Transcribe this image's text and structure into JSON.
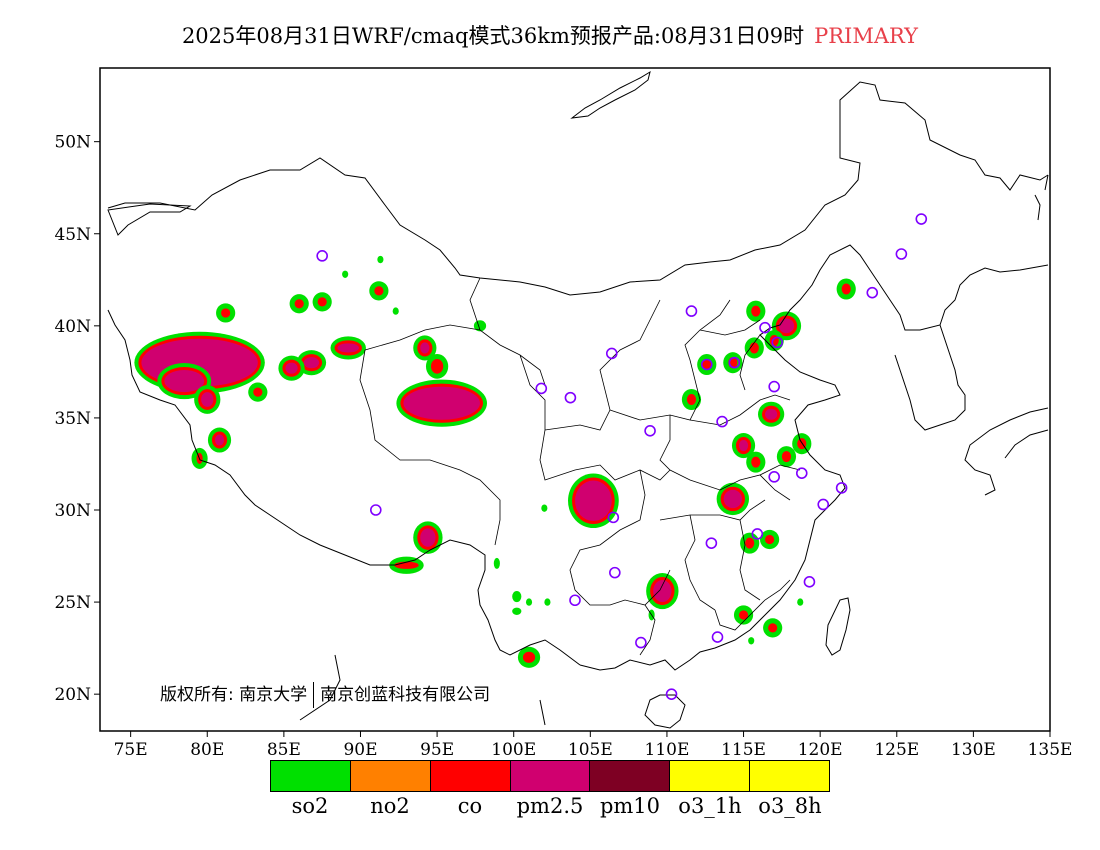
{
  "title": {
    "main": "2025年08月31日WRF/cmaq模式36km预报产品:08月31日09时",
    "tag": "PRIMARY"
  },
  "copyright": {
    "holder1": "版权所有: 南京大学",
    "holder2": "南京创蓝科技有限公司"
  },
  "axes": {
    "lon_labels": [
      "75E",
      "80E",
      "85E",
      "90E",
      "95E",
      "100E",
      "105E",
      "110E",
      "115E",
      "120E",
      "125E",
      "130E",
      "135E"
    ],
    "lon_values": [
      75,
      80,
      85,
      90,
      95,
      100,
      105,
      110,
      115,
      120,
      125,
      130,
      135
    ],
    "lat_labels": [
      "20N",
      "25N",
      "30N",
      "35N",
      "40N",
      "45N",
      "50N"
    ],
    "lat_values": [
      20,
      25,
      30,
      35,
      40,
      45,
      50
    ],
    "lon_range": [
      73,
      135
    ],
    "lat_range": [
      18,
      54
    ]
  },
  "legend": [
    {
      "label": "so2",
      "color": "#00e000"
    },
    {
      "label": "no2",
      "color": "#ff8000"
    },
    {
      "label": "co",
      "color": "#ff0000"
    },
    {
      "label": "pm2.5",
      "color": "#d0006f"
    },
    {
      "label": "pm10",
      "color": "#7e0023"
    },
    {
      "label": "o3_1h",
      "color": "#ffff00"
    },
    {
      "label": "o3_8h",
      "color": "#ffff00"
    }
  ],
  "colors": {
    "ring": "#7f00ff"
  },
  "primary_regions": [
    {
      "kind": "pm2.5",
      "lon": 79.5,
      "lat": 38.0,
      "rx": 3.8,
      "ry": 1.3
    },
    {
      "kind": "pm2.5",
      "lon": 78.5,
      "lat": 37.0,
      "rx": 1.3,
      "ry": 0.6
    },
    {
      "kind": "pm2.5",
      "lon": 95.3,
      "lat": 35.8,
      "rx": 2.5,
      "ry": 0.9
    },
    {
      "kind": "pm2.5",
      "lon": 105.2,
      "lat": 30.5,
      "rx": 1.2,
      "ry": 1.1
    },
    {
      "kind": "pm2.5",
      "lon": 114.3,
      "lat": 30.6,
      "rx": 0.6,
      "ry": 0.5
    },
    {
      "kind": "pm2.5",
      "lon": 109.7,
      "lat": 25.6,
      "rx": 0.6,
      "ry": 0.6
    },
    {
      "kind": "pm2.5",
      "lon": 94.4,
      "lat": 28.5,
      "rx": 0.5,
      "ry": 0.5
    },
    {
      "kind": "pm2.5",
      "lon": 89.2,
      "lat": 38.8,
      "rx": 0.7,
      "ry": 0.25
    },
    {
      "kind": "pm2.5",
      "lon": 86.8,
      "lat": 38.0,
      "rx": 0.5,
      "ry": 0.3
    },
    {
      "kind": "pm2.5",
      "lon": 85.5,
      "lat": 37.7,
      "rx": 0.4,
      "ry": 0.3
    },
    {
      "kind": "pm2.5",
      "lon": 80.0,
      "lat": 36.0,
      "rx": 0.4,
      "ry": 0.4
    },
    {
      "kind": "pm2.5",
      "lon": 80.8,
      "lat": 33.8,
      "rx": 0.3,
      "ry": 0.3
    },
    {
      "kind": "pm2.5",
      "lon": 94.2,
      "lat": 38.8,
      "rx": 0.3,
      "ry": 0.3
    },
    {
      "kind": "pm2.5",
      "lon": 115.0,
      "lat": 33.5,
      "rx": 0.3,
      "ry": 0.3
    },
    {
      "kind": "pm2.5",
      "lon": 116.8,
      "lat": 35.2,
      "rx": 0.4,
      "ry": 0.3
    },
    {
      "kind": "pm2.5",
      "lon": 117.8,
      "lat": 40.0,
      "rx": 0.5,
      "ry": 0.4
    },
    {
      "kind": "co",
      "lon": 86.0,
      "lat": 41.2,
      "rx": 0.3,
      "ry": 0.25
    },
    {
      "kind": "co",
      "lon": 87.5,
      "lat": 41.3,
      "rx": 0.3,
      "ry": 0.25
    },
    {
      "kind": "co",
      "lon": 81.2,
      "lat": 40.7,
      "rx": 0.3,
      "ry": 0.25
    },
    {
      "kind": "co",
      "lon": 83.3,
      "lat": 36.4,
      "rx": 0.3,
      "ry": 0.25
    },
    {
      "kind": "co",
      "lon": 91.2,
      "lat": 41.9,
      "rx": 0.3,
      "ry": 0.25
    },
    {
      "kind": "co",
      "lon": 95.0,
      "lat": 37.8,
      "rx": 0.4,
      "ry": 0.4
    },
    {
      "kind": "co",
      "lon": 101.0,
      "lat": 22.0,
      "rx": 0.4,
      "ry": 0.3
    },
    {
      "kind": "co",
      "lon": 93.0,
      "lat": 27.0,
      "rx": 0.8,
      "ry": 0.2
    },
    {
      "kind": "co",
      "lon": 111.6,
      "lat": 36.0,
      "rx": 0.3,
      "ry": 0.3
    },
    {
      "kind": "co",
      "lon": 112.6,
      "lat": 37.9,
      "rx": 0.3,
      "ry": 0.3
    },
    {
      "kind": "co",
      "lon": 114.3,
      "lat": 38.0,
      "rx": 0.3,
      "ry": 0.3
    },
    {
      "kind": "co",
      "lon": 115.7,
      "lat": 38.8,
      "rx": 0.3,
      "ry": 0.3
    },
    {
      "kind": "co",
      "lon": 115.8,
      "lat": 40.8,
      "rx": 0.3,
      "ry": 0.3
    },
    {
      "kind": "co",
      "lon": 117.0,
      "lat": 39.2,
      "rx": 0.3,
      "ry": 0.3
    },
    {
      "kind": "co",
      "lon": 117.8,
      "lat": 32.9,
      "rx": 0.3,
      "ry": 0.3
    },
    {
      "kind": "co",
      "lon": 118.8,
      "lat": 33.6,
      "rx": 0.3,
      "ry": 0.3
    },
    {
      "kind": "co",
      "lon": 115.8,
      "lat": 32.6,
      "rx": 0.3,
      "ry": 0.3
    },
    {
      "kind": "co",
      "lon": 115.4,
      "lat": 28.2,
      "rx": 0.3,
      "ry": 0.3
    },
    {
      "kind": "co",
      "lon": 116.7,
      "lat": 28.4,
      "rx": 0.3,
      "ry": 0.25
    },
    {
      "kind": "co",
      "lon": 115.0,
      "lat": 24.3,
      "rx": 0.3,
      "ry": 0.25
    },
    {
      "kind": "co",
      "lon": 116.9,
      "lat": 23.6,
      "rx": 0.3,
      "ry": 0.25
    },
    {
      "kind": "co",
      "lon": 121.7,
      "lat": 42.0,
      "rx": 0.3,
      "ry": 0.3
    },
    {
      "kind": "co",
      "lon": 79.5,
      "lat": 32.8,
      "rx": 0.2,
      "ry": 0.3
    },
    {
      "kind": "so2",
      "lon": 91.3,
      "lat": 43.6,
      "rx": 0.2,
      "ry": 0.2
    },
    {
      "kind": "so2",
      "lon": 89.0,
      "lat": 42.8,
      "rx": 0.2,
      "ry": 0.2
    },
    {
      "kind": "so2",
      "lon": 92.3,
      "lat": 40.8,
      "rx": 0.2,
      "ry": 0.2
    },
    {
      "kind": "so2",
      "lon": 97.8,
      "lat": 40.0,
      "rx": 0.4,
      "ry": 0.3
    },
    {
      "kind": "so2",
      "lon": 102.0,
      "lat": 30.1,
      "rx": 0.2,
      "ry": 0.2
    },
    {
      "kind": "so2",
      "lon": 100.2,
      "lat": 25.3,
      "rx": 0.3,
      "ry": 0.3
    },
    {
      "kind": "so2",
      "lon": 100.2,
      "lat": 24.5,
      "rx": 0.3,
      "ry": 0.2
    },
    {
      "kind": "so2",
      "lon": 101.0,
      "lat": 25.0,
      "rx": 0.2,
      "ry": 0.2
    },
    {
      "kind": "so2",
      "lon": 102.2,
      "lat": 25.0,
      "rx": 0.2,
      "ry": 0.2
    },
    {
      "kind": "so2",
      "lon": 109.0,
      "lat": 24.3,
      "rx": 0.2,
      "ry": 0.3
    },
    {
      "kind": "so2",
      "lon": 98.9,
      "lat": 27.1,
      "rx": 0.2,
      "ry": 0.3
    },
    {
      "kind": "so2",
      "lon": 115.5,
      "lat": 22.9,
      "rx": 0.2,
      "ry": 0.2
    },
    {
      "kind": "so2",
      "lon": 118.7,
      "lat": 25.0,
      "rx": 0.2,
      "ry": 0.2
    }
  ],
  "o3_rings": [
    [
      87.5,
      43.8
    ],
    [
      91.0,
      30.0
    ],
    [
      101.8,
      36.6
    ],
    [
      103.7,
      36.1
    ],
    [
      106.4,
      38.5
    ],
    [
      108.9,
      34.3
    ],
    [
      111.6,
      40.8
    ],
    [
      112.6,
      37.9
    ],
    [
      114.4,
      38.0
    ],
    [
      113.6,
      34.8
    ],
    [
      116.4,
      39.9
    ],
    [
      117.2,
      39.1
    ],
    [
      117.0,
      36.7
    ],
    [
      117.0,
      31.8
    ],
    [
      118.8,
      32.0
    ],
    [
      120.2,
      30.3
    ],
    [
      121.4,
      31.2
    ],
    [
      115.9,
      28.7
    ],
    [
      112.9,
      28.2
    ],
    [
      106.6,
      26.6
    ],
    [
      106.5,
      29.6
    ],
    [
      104.0,
      25.1
    ],
    [
      108.3,
      22.8
    ],
    [
      113.3,
      23.1
    ],
    [
      110.3,
      20.0
    ],
    [
      119.3,
      26.1
    ],
    [
      123.4,
      41.8
    ],
    [
      125.3,
      43.9
    ],
    [
      126.6,
      45.8
    ]
  ]
}
